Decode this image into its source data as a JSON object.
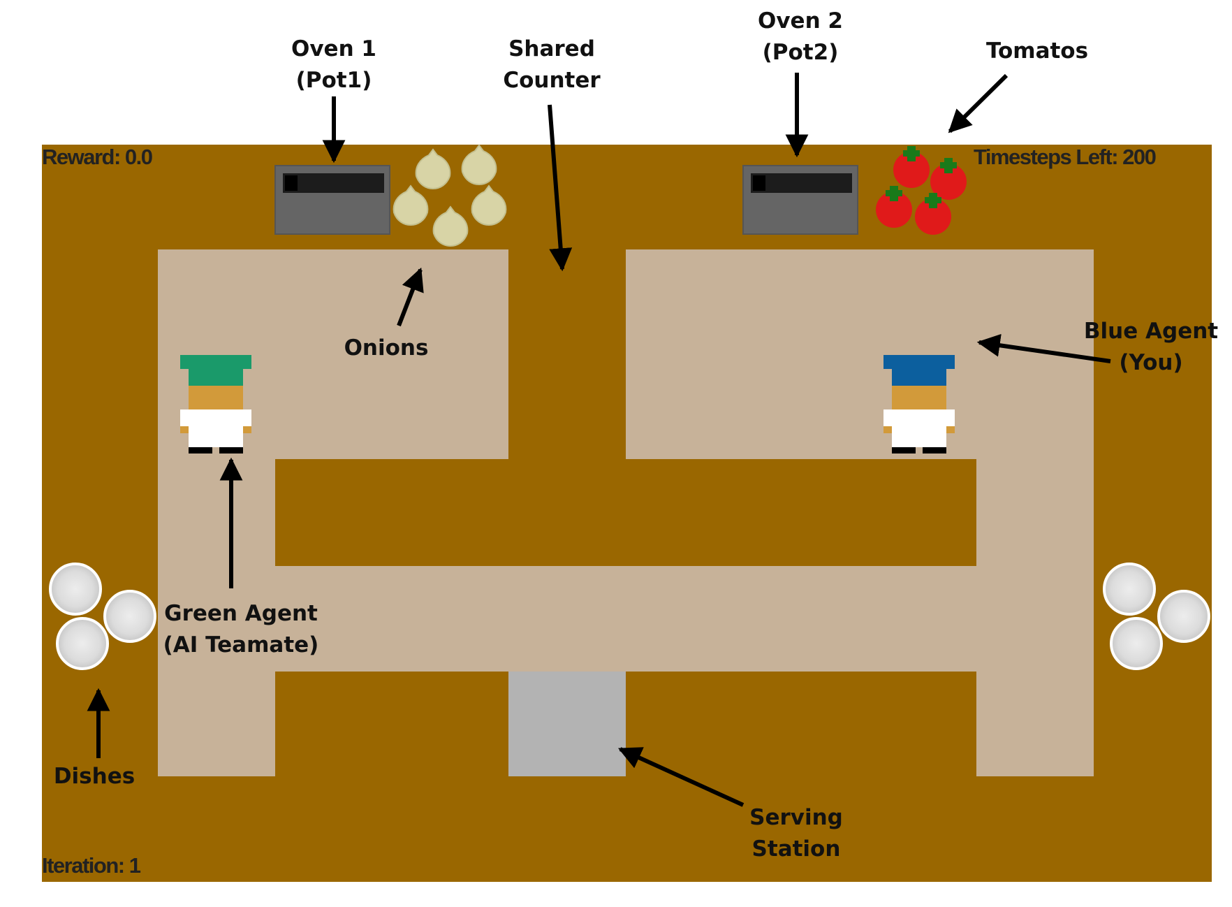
{
  "hud": {
    "reward": "Reward: 0.0",
    "timesteps": "Timesteps Left: 200",
    "iteration": "Iteration: 1"
  },
  "annotations": {
    "oven1": [
      "Oven 1",
      "(Pot1)"
    ],
    "shared_counter": [
      "Shared",
      "Counter"
    ],
    "oven2": [
      "Oven 2",
      "(Pot2)"
    ],
    "tomatos": [
      "Tomatos"
    ],
    "onions": [
      "Onions"
    ],
    "blue_agent": [
      "Blue Agent",
      "(You)"
    ],
    "green_agent": [
      "Green Agent",
      "(AI Teamate)"
    ],
    "dishes": [
      "Dishes"
    ],
    "serving_station": [
      "Serving",
      "Station"
    ]
  },
  "colors": {
    "counter": "#9a6700",
    "floor": "#c7b299",
    "oven": "#656565",
    "serving_station": "#b3b3b3",
    "green_agent_hat": "#1a9a6a",
    "blue_agent_hat": "#0c5f9e",
    "tomato": "#e01a1a",
    "onion": "#d8d4a6",
    "dish": "#e4e4e4"
  },
  "icons": {
    "oven": "oven-icon",
    "onion": "onion-icon",
    "tomato": "tomato-icon",
    "dish": "dish-icon",
    "agent": "chef-icon",
    "arrow": "arrow-icon"
  }
}
